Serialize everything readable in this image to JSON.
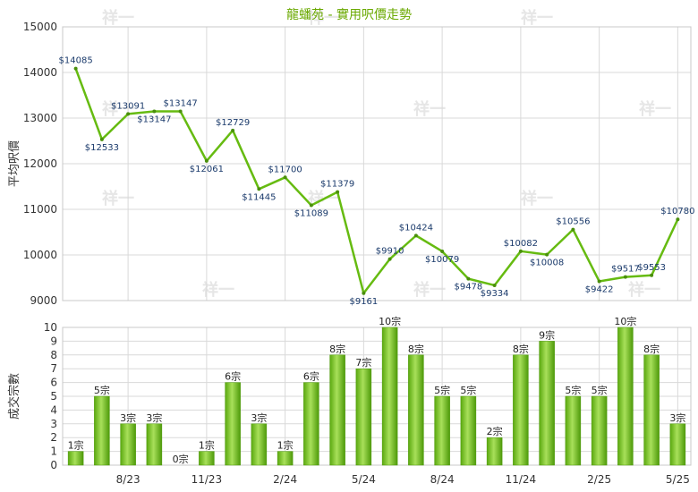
{
  "chart_data": [
    {
      "type": "line",
      "title": "龍蟠苑 - 實用呎價走勢",
      "ylabel": "平均呎價",
      "ylim": [
        9000,
        15000
      ],
      "y_ticks": [
        9000,
        10000,
        11000,
        12000,
        13000,
        14000,
        15000
      ],
      "grid": true,
      "series": [
        {
          "color": "#66bb11",
          "values": [
            14085,
            12533,
            13091,
            13147,
            13147,
            12061,
            12729,
            11445,
            11700,
            11089,
            11379,
            9161,
            9910,
            10424,
            10079,
            9478,
            9334,
            10082,
            10008,
            10556,
            9422,
            9517,
            9553,
            10780
          ],
          "labels": [
            "$14085",
            "$12533",
            "$13091",
            "$13147",
            "$13147",
            "$12061",
            "$12729",
            "$11445",
            "$11700",
            "$11089",
            "$11379",
            "$9161",
            "$9910",
            "$10424",
            "$10079",
            "$9478",
            "$9334",
            "$10082",
            "$10008",
            "$10556",
            "$9422",
            "$9517",
            "$9553",
            "$10780"
          ]
        }
      ]
    },
    {
      "type": "bar",
      "ylabel": "成交宗數",
      "ylim": [
        0,
        10
      ],
      "y_ticks": [
        0,
        1,
        2,
        3,
        4,
        5,
        6,
        7,
        8,
        9,
        10
      ],
      "x_tick_labels": [
        "8/23",
        "11/23",
        "2/24",
        "5/24",
        "8/24",
        "11/24",
        "2/25",
        "5/25"
      ],
      "grid": true,
      "series": [
        {
          "color": "#77c322",
          "values": [
            1,
            5,
            3,
            3,
            0,
            1,
            6,
            3,
            1,
            6,
            8,
            7,
            10,
            8,
            5,
            5,
            2,
            8,
            9,
            5,
            5,
            10,
            8,
            3
          ],
          "labels": [
            "1宗",
            "5宗",
            "3宗",
            "3宗",
            "0宗",
            "1宗",
            "6宗",
            "3宗",
            "1宗",
            "6宗",
            "8宗",
            "7宗",
            "10宗",
            "8宗",
            "5宗",
            "5宗",
            "2宗",
            "8宗",
            "9宗",
            "5宗",
            "5宗",
            "10宗",
            "8宗",
            "3宗"
          ]
        }
      ]
    }
  ],
  "watermark": "祥一"
}
